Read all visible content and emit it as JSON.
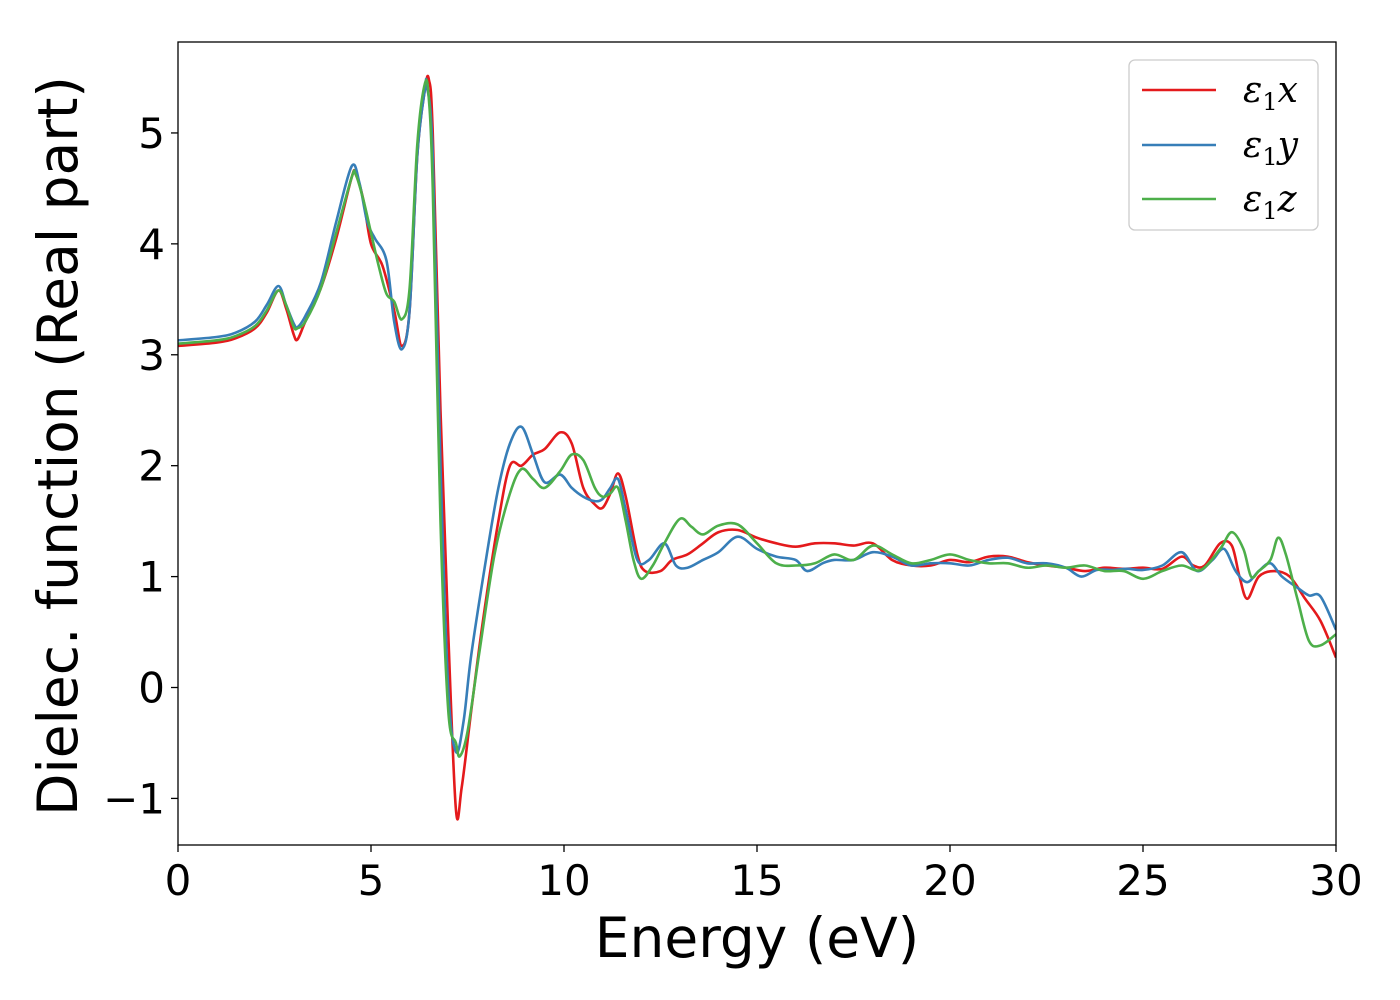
{
  "chart_data": {
    "type": "line",
    "xlabel": "Energy (eV)",
    "ylabel": "Dielec. function (Real part)",
    "xlim": [
      0,
      30
    ],
    "ylim": [
      -1.42,
      5.82
    ],
    "xticks": [
      0,
      5,
      10,
      15,
      20,
      25,
      30
    ],
    "xtick_labels": [
      "0",
      "5",
      "10",
      "15",
      "20",
      "25",
      "30"
    ],
    "yticks": [
      -1,
      0,
      1,
      2,
      3,
      4,
      5
    ],
    "ytick_labels": [
      "−1",
      "0",
      "1",
      "2",
      "3",
      "4",
      "5"
    ],
    "grid": false,
    "legend": "top-right",
    "series": [
      {
        "name": "ε1x",
        "name_symbol": "ε",
        "name_sub": "1",
        "name_var": "x",
        "color": "#e41a1c",
        "points": [
          [
            0,
            3.08
          ],
          [
            1,
            3.11
          ],
          [
            1.5,
            3.15
          ],
          [
            2,
            3.24
          ],
          [
            2.3,
            3.38
          ],
          [
            2.6,
            3.58
          ],
          [
            2.8,
            3.42
          ],
          [
            3.0,
            3.18
          ],
          [
            3.1,
            3.14
          ],
          [
            3.3,
            3.3
          ],
          [
            3.7,
            3.6
          ],
          [
            4.1,
            4.05
          ],
          [
            4.5,
            4.6
          ],
          [
            4.6,
            4.63
          ],
          [
            4.8,
            4.4
          ],
          [
            5.0,
            4.0
          ],
          [
            5.3,
            3.8
          ],
          [
            5.6,
            3.4
          ],
          [
            5.8,
            3.08
          ],
          [
            6.0,
            3.4
          ],
          [
            6.2,
            4.8
          ],
          [
            6.4,
            5.4
          ],
          [
            6.5,
            5.48
          ],
          [
            6.6,
            5.0
          ],
          [
            6.8,
            2.5
          ],
          [
            7.0,
            0.5
          ],
          [
            7.2,
            -1.1
          ],
          [
            7.35,
            -0.9
          ],
          [
            7.6,
            -0.2
          ],
          [
            7.9,
            0.6
          ],
          [
            8.3,
            1.5
          ],
          [
            8.6,
            2.0
          ],
          [
            8.9,
            2.0
          ],
          [
            9.2,
            2.1
          ],
          [
            9.5,
            2.15
          ],
          [
            9.9,
            2.3
          ],
          [
            10.2,
            2.2
          ],
          [
            10.5,
            1.8
          ],
          [
            10.8,
            1.65
          ],
          [
            11.0,
            1.62
          ],
          [
            11.2,
            1.75
          ],
          [
            11.4,
            1.93
          ],
          [
            11.6,
            1.72
          ],
          [
            11.9,
            1.2
          ],
          [
            12.1,
            1.05
          ],
          [
            12.5,
            1.05
          ],
          [
            12.8,
            1.15
          ],
          [
            13.2,
            1.2
          ],
          [
            13.6,
            1.3
          ],
          [
            14.0,
            1.4
          ],
          [
            14.5,
            1.42
          ],
          [
            15.0,
            1.35
          ],
          [
            15.5,
            1.3
          ],
          [
            16.0,
            1.27
          ],
          [
            16.5,
            1.3
          ],
          [
            17.0,
            1.3
          ],
          [
            17.5,
            1.28
          ],
          [
            18.0,
            1.3
          ],
          [
            18.5,
            1.15
          ],
          [
            19.0,
            1.1
          ],
          [
            19.5,
            1.1
          ],
          [
            20.0,
            1.15
          ],
          [
            20.5,
            1.13
          ],
          [
            21.0,
            1.18
          ],
          [
            21.5,
            1.18
          ],
          [
            22.0,
            1.13
          ],
          [
            22.5,
            1.1
          ],
          [
            23.0,
            1.08
          ],
          [
            23.5,
            1.05
          ],
          [
            24.0,
            1.08
          ],
          [
            24.5,
            1.07
          ],
          [
            25.0,
            1.08
          ],
          [
            25.5,
            1.07
          ],
          [
            26.0,
            1.18
          ],
          [
            26.3,
            1.1
          ],
          [
            26.6,
            1.1
          ],
          [
            27.0,
            1.3
          ],
          [
            27.3,
            1.28
          ],
          [
            27.5,
            1.0
          ],
          [
            27.7,
            0.8
          ],
          [
            28.0,
            1.0
          ],
          [
            28.4,
            1.05
          ],
          [
            28.8,
            1.0
          ],
          [
            29.2,
            0.8
          ],
          [
            29.6,
            0.6
          ],
          [
            30,
            0.27
          ]
        ]
      },
      {
        "name": "ε1y",
        "name_symbol": "ε",
        "name_sub": "1",
        "name_var": "y",
        "color": "#377eb8",
        "points": [
          [
            0,
            3.13
          ],
          [
            1,
            3.16
          ],
          [
            1.5,
            3.2
          ],
          [
            2,
            3.3
          ],
          [
            2.3,
            3.45
          ],
          [
            2.6,
            3.62
          ],
          [
            2.8,
            3.45
          ],
          [
            3.0,
            3.28
          ],
          [
            3.1,
            3.25
          ],
          [
            3.3,
            3.35
          ],
          [
            3.7,
            3.65
          ],
          [
            4.1,
            4.2
          ],
          [
            4.5,
            4.7
          ],
          [
            4.7,
            4.55
          ],
          [
            4.9,
            4.2
          ],
          [
            5.1,
            4.05
          ],
          [
            5.4,
            3.85
          ],
          [
            5.6,
            3.3
          ],
          [
            5.8,
            3.05
          ],
          [
            6.0,
            3.4
          ],
          [
            6.2,
            4.8
          ],
          [
            6.4,
            5.4
          ],
          [
            6.45,
            5.42
          ],
          [
            6.6,
            4.8
          ],
          [
            6.8,
            2.0
          ],
          [
            7.0,
            0.0
          ],
          [
            7.2,
            -0.58
          ],
          [
            7.4,
            -0.3
          ],
          [
            7.6,
            0.3
          ],
          [
            8.0,
            1.2
          ],
          [
            8.3,
            1.8
          ],
          [
            8.6,
            2.2
          ],
          [
            8.9,
            2.35
          ],
          [
            9.2,
            2.1
          ],
          [
            9.5,
            1.85
          ],
          [
            9.9,
            1.92
          ],
          [
            10.2,
            1.8
          ],
          [
            10.5,
            1.72
          ],
          [
            10.8,
            1.68
          ],
          [
            11.0,
            1.7
          ],
          [
            11.2,
            1.8
          ],
          [
            11.4,
            1.88
          ],
          [
            11.6,
            1.6
          ],
          [
            11.9,
            1.15
          ],
          [
            12.2,
            1.15
          ],
          [
            12.6,
            1.3
          ],
          [
            12.9,
            1.1
          ],
          [
            13.2,
            1.08
          ],
          [
            13.6,
            1.15
          ],
          [
            14.0,
            1.22
          ],
          [
            14.5,
            1.36
          ],
          [
            15.0,
            1.25
          ],
          [
            15.5,
            1.18
          ],
          [
            16.0,
            1.15
          ],
          [
            16.3,
            1.05
          ],
          [
            16.7,
            1.12
          ],
          [
            17.0,
            1.15
          ],
          [
            17.5,
            1.15
          ],
          [
            18.0,
            1.22
          ],
          [
            18.5,
            1.18
          ],
          [
            19.0,
            1.1
          ],
          [
            19.5,
            1.12
          ],
          [
            20.0,
            1.12
          ],
          [
            20.5,
            1.1
          ],
          [
            21.0,
            1.15
          ],
          [
            21.5,
            1.17
          ],
          [
            22.0,
            1.12
          ],
          [
            22.5,
            1.12
          ],
          [
            23.0,
            1.08
          ],
          [
            23.4,
            1.0
          ],
          [
            23.8,
            1.06
          ],
          [
            24.2,
            1.06
          ],
          [
            24.6,
            1.07
          ],
          [
            25.0,
            1.06
          ],
          [
            25.5,
            1.1
          ],
          [
            26.0,
            1.22
          ],
          [
            26.4,
            1.05
          ],
          [
            26.8,
            1.15
          ],
          [
            27.1,
            1.25
          ],
          [
            27.4,
            1.05
          ],
          [
            27.7,
            0.95
          ],
          [
            28.0,
            1.05
          ],
          [
            28.3,
            1.12
          ],
          [
            28.6,
            1.0
          ],
          [
            29.0,
            0.9
          ],
          [
            29.3,
            0.83
          ],
          [
            29.6,
            0.82
          ],
          [
            30,
            0.52
          ]
        ]
      },
      {
        "name": "ε1z",
        "name_symbol": "ε",
        "name_sub": "1",
        "name_var": "z",
        "color": "#4daf4a",
        "points": [
          [
            0,
            3.1
          ],
          [
            1,
            3.13
          ],
          [
            1.5,
            3.17
          ],
          [
            2,
            3.26
          ],
          [
            2.3,
            3.4
          ],
          [
            2.6,
            3.58
          ],
          [
            2.8,
            3.45
          ],
          [
            3.0,
            3.25
          ],
          [
            3.1,
            3.24
          ],
          [
            3.3,
            3.3
          ],
          [
            3.7,
            3.6
          ],
          [
            4.1,
            4.1
          ],
          [
            4.5,
            4.6
          ],
          [
            4.6,
            4.63
          ],
          [
            4.8,
            4.4
          ],
          [
            5.0,
            4.1
          ],
          [
            5.2,
            3.8
          ],
          [
            5.4,
            3.55
          ],
          [
            5.6,
            3.48
          ],
          [
            5.8,
            3.32
          ],
          [
            6.0,
            3.6
          ],
          [
            6.2,
            4.9
          ],
          [
            6.4,
            5.45
          ],
          [
            6.5,
            5.3
          ],
          [
            6.6,
            4.5
          ],
          [
            6.8,
            1.5
          ],
          [
            7.0,
            -0.2
          ],
          [
            7.2,
            -0.5
          ],
          [
            7.3,
            -0.62
          ],
          [
            7.5,
            -0.4
          ],
          [
            7.8,
            0.3
          ],
          [
            8.2,
            1.2
          ],
          [
            8.6,
            1.75
          ],
          [
            8.9,
            1.97
          ],
          [
            9.2,
            1.88
          ],
          [
            9.5,
            1.8
          ],
          [
            9.9,
            1.95
          ],
          [
            10.2,
            2.1
          ],
          [
            10.5,
            2.05
          ],
          [
            10.8,
            1.8
          ],
          [
            11.0,
            1.72
          ],
          [
            11.2,
            1.75
          ],
          [
            11.4,
            1.8
          ],
          [
            11.6,
            1.5
          ],
          [
            11.8,
            1.15
          ],
          [
            12.0,
            0.98
          ],
          [
            12.3,
            1.1
          ],
          [
            12.6,
            1.3
          ],
          [
            13.0,
            1.52
          ],
          [
            13.3,
            1.45
          ],
          [
            13.6,
            1.38
          ],
          [
            14.0,
            1.46
          ],
          [
            14.5,
            1.47
          ],
          [
            15.0,
            1.3
          ],
          [
            15.5,
            1.12
          ],
          [
            16.0,
            1.1
          ],
          [
            16.5,
            1.12
          ],
          [
            17.0,
            1.2
          ],
          [
            17.5,
            1.15
          ],
          [
            18.0,
            1.28
          ],
          [
            18.5,
            1.2
          ],
          [
            19.0,
            1.12
          ],
          [
            19.5,
            1.15
          ],
          [
            20.0,
            1.2
          ],
          [
            20.5,
            1.15
          ],
          [
            21.0,
            1.12
          ],
          [
            21.5,
            1.12
          ],
          [
            22.0,
            1.08
          ],
          [
            22.5,
            1.1
          ],
          [
            23.0,
            1.08
          ],
          [
            23.5,
            1.1
          ],
          [
            24.0,
            1.05
          ],
          [
            24.5,
            1.05
          ],
          [
            25.0,
            0.98
          ],
          [
            25.5,
            1.05
          ],
          [
            26.0,
            1.1
          ],
          [
            26.5,
            1.06
          ],
          [
            27.0,
            1.25
          ],
          [
            27.3,
            1.4
          ],
          [
            27.6,
            1.25
          ],
          [
            27.8,
            1.0
          ],
          [
            28.0,
            1.05
          ],
          [
            28.3,
            1.15
          ],
          [
            28.5,
            1.35
          ],
          [
            28.7,
            1.2
          ],
          [
            29.0,
            0.8
          ],
          [
            29.3,
            0.42
          ],
          [
            29.6,
            0.38
          ],
          [
            30,
            0.48
          ]
        ]
      }
    ]
  }
}
